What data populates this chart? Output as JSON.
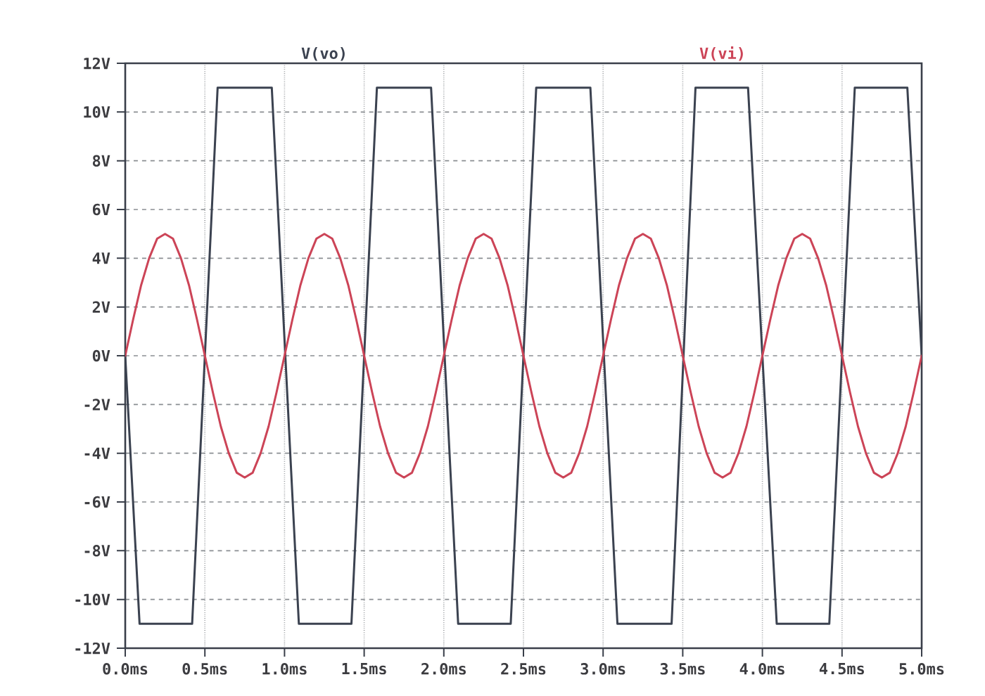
{
  "chart_data": {
    "type": "line",
    "xlim": [
      0,
      5
    ],
    "xticks": [
      {
        "value": 0,
        "label": "0.0ms"
      },
      {
        "value": 0.5,
        "label": "0.5ms"
      },
      {
        "value": 1,
        "label": "1.0ms"
      },
      {
        "value": 1.5,
        "label": "1.5ms"
      },
      {
        "value": 2,
        "label": "2.0ms"
      },
      {
        "value": 2.5,
        "label": "2.5ms"
      },
      {
        "value": 3,
        "label": "3.0ms"
      },
      {
        "value": 3.5,
        "label": "3.5ms"
      },
      {
        "value": 4,
        "label": "4.0ms"
      },
      {
        "value": 4.5,
        "label": "4.5ms"
      },
      {
        "value": 5,
        "label": "5.0ms"
      }
    ],
    "ylim": [
      -12,
      12
    ],
    "yticks": [
      {
        "value": 12,
        "label": "12V"
      },
      {
        "value": 10,
        "label": "10V"
      },
      {
        "value": 8,
        "label": "8V"
      },
      {
        "value": 6,
        "label": "6V"
      },
      {
        "value": 4,
        "label": "4V"
      },
      {
        "value": 2,
        "label": "2V"
      },
      {
        "value": 0,
        "label": "0V"
      },
      {
        "value": -2,
        "label": "-2V"
      },
      {
        "value": -4,
        "label": "-4V"
      },
      {
        "value": -6,
        "label": "-6V"
      },
      {
        "value": -8,
        "label": "-8V"
      },
      {
        "value": -10,
        "label": "-10V"
      },
      {
        "value": -12,
        "label": "-12V"
      }
    ],
    "grid": true,
    "line_style": "solid",
    "series": [
      {
        "name": "V(vo)",
        "color": "#3b4250",
        "x": [
          0,
          0.09,
          0.42,
          0.58,
          0.92,
          1.09,
          1.42,
          1.58,
          1.92,
          2.09,
          2.42,
          2.58,
          2.92,
          3.09,
          3.43,
          3.58,
          3.91,
          4.09,
          4.42,
          4.58,
          4.91,
          5
        ],
        "values": [
          0,
          -11,
          -11,
          11,
          11,
          -11,
          -11,
          11,
          11,
          -11,
          -11,
          11,
          11,
          -11,
          -11,
          11,
          11,
          -11,
          -11,
          11,
          11,
          0
        ]
      },
      {
        "name": "V(vi)",
        "color": "#cc4457",
        "x": [
          0,
          0.05,
          0.1,
          0.15,
          0.2,
          0.25,
          0.3,
          0.35,
          0.4,
          0.45,
          0.5,
          0.55,
          0.6,
          0.65,
          0.7,
          0.75,
          0.8,
          0.85,
          0.9,
          0.95,
          1,
          1.05,
          1.1,
          1.15,
          1.2,
          1.25,
          1.3,
          1.35,
          1.4,
          1.45,
          1.5,
          1.55,
          1.6,
          1.65,
          1.7,
          1.75,
          1.8,
          1.85,
          1.9,
          1.95,
          2,
          2.05,
          2.1,
          2.15,
          2.2,
          2.25,
          2.3,
          2.35,
          2.4,
          2.45,
          2.5,
          2.55,
          2.6,
          2.65,
          2.7,
          2.75,
          2.8,
          2.85,
          2.9,
          2.95,
          3,
          3.05,
          3.1,
          3.15,
          3.2,
          3.25,
          3.3,
          3.35,
          3.4,
          3.45,
          3.5,
          3.55,
          3.6,
          3.65,
          3.7,
          3.75,
          3.8,
          3.85,
          3.9,
          3.95,
          4,
          4.05,
          4.1,
          4.15,
          4.2,
          4.25,
          4.3,
          4.35,
          4.4,
          4.45,
          4.5,
          4.55,
          4.6,
          4.65,
          4.7,
          4.75,
          4.8,
          4.85,
          4.9,
          4.95,
          5
        ],
        "values": [
          0,
          1.5,
          2.9,
          4.0,
          4.8,
          5.0,
          4.8,
          4.0,
          2.9,
          1.5,
          0,
          -1.5,
          -2.9,
          -4.0,
          -4.8,
          -5.0,
          -4.8,
          -4.0,
          -2.9,
          -1.5,
          0,
          1.5,
          2.9,
          4.0,
          4.8,
          5.0,
          4.8,
          4.0,
          2.9,
          1.5,
          0,
          -1.5,
          -2.9,
          -4.0,
          -4.8,
          -5.0,
          -4.8,
          -4.0,
          -2.9,
          -1.5,
          0,
          1.5,
          2.9,
          4.0,
          4.8,
          5.0,
          4.8,
          4.0,
          2.9,
          1.5,
          0,
          -1.5,
          -2.9,
          -4.0,
          -4.8,
          -5.0,
          -4.8,
          -4.0,
          -2.9,
          -1.5,
          0,
          1.5,
          2.9,
          4.0,
          4.8,
          5.0,
          4.8,
          4.0,
          2.9,
          1.5,
          0,
          -1.5,
          -2.9,
          -4.0,
          -4.8,
          -5.0,
          -4.8,
          -4.0,
          -2.9,
          -1.5,
          0,
          1.5,
          2.9,
          4.0,
          4.8,
          5.0,
          4.8,
          4.0,
          2.9,
          1.5,
          0,
          -1.5,
          -2.9,
          -4.0,
          -4.8,
          -5.0,
          -4.8,
          -4.0,
          -2.9,
          -1.5,
          0
        ]
      }
    ]
  }
}
